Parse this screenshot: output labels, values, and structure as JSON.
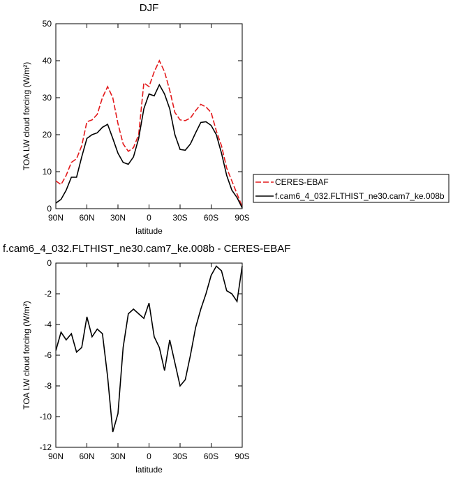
{
  "chart_data": [
    {
      "type": "line",
      "title": "DJF",
      "xlabel": "latitude",
      "ylabel": "TOA LW cloud forcing (W/m²)",
      "x": [
        90,
        85,
        80,
        75,
        70,
        65,
        60,
        55,
        50,
        45,
        40,
        35,
        30,
        25,
        20,
        15,
        10,
        5,
        0,
        -5,
        -10,
        -15,
        -20,
        -25,
        -30,
        -35,
        -40,
        -45,
        -50,
        -55,
        -60,
        -65,
        -70,
        -75,
        -80,
        -85,
        -90
      ],
      "xlim": [
        90,
        -90
      ],
      "xticks": [
        {
          "value": 90,
          "label": "90N"
        },
        {
          "value": 60,
          "label": "60N"
        },
        {
          "value": 30,
          "label": "30N"
        },
        0,
        {
          "value": -30,
          "label": "30S"
        },
        {
          "value": -60,
          "label": "60S"
        },
        {
          "value": -90,
          "label": "90S"
        }
      ],
      "ylim": [
        0,
        50
      ],
      "yticks": [
        0,
        10,
        20,
        30,
        40,
        50
      ],
      "legend": "outside-right",
      "series": [
        {
          "name": "CERES-EBAF",
          "color": "#e31a1c",
          "dash": true,
          "values": [
            7.5,
            6.5,
            9,
            12.5,
            13.5,
            17,
            23.5,
            24,
            25.5,
            30,
            33,
            30,
            23,
            17.5,
            15.5,
            16.5,
            20,
            34,
            33,
            37,
            40,
            37,
            32,
            26,
            24,
            23.8,
            24.5,
            26.5,
            28.2,
            27.5,
            26,
            21,
            17,
            11,
            7.5,
            4,
            0.5
          ]
        },
        {
          "name": "f.cam6_4_032.FLTHIST_ne30.cam7_ke.008b",
          "color": "#000000",
          "dash": false,
          "values": [
            1.5,
            2.5,
            5,
            8.5,
            8.5,
            14,
            19,
            20,
            20.5,
            22,
            22.8,
            19,
            15,
            12.5,
            12,
            14,
            19,
            27,
            31,
            30.5,
            33.5,
            31,
            27,
            20,
            16,
            15.8,
            17.5,
            20.5,
            23.3,
            23.5,
            22.5,
            20,
            15,
            9,
            5,
            3,
            0.2
          ]
        }
      ]
    },
    {
      "type": "line",
      "title": "f.cam6_4_032.FLTHIST_ne30.cam7_ke.008b - CERES-EBAF",
      "xlabel": "latitude",
      "ylabel": "TOA LW cloud forcing (W/m²)",
      "x": [
        90,
        85,
        80,
        75,
        70,
        65,
        60,
        55,
        50,
        45,
        40,
        35,
        30,
        25,
        20,
        15,
        10,
        5,
        0,
        -5,
        -10,
        -15,
        -20,
        -25,
        -30,
        -35,
        -40,
        -45,
        -50,
        -55,
        -60,
        -65,
        -70,
        -75,
        -80,
        -85,
        -90
      ],
      "xlim": [
        90,
        -90
      ],
      "xticks": [
        {
          "value": 90,
          "label": "90N"
        },
        {
          "value": 60,
          "label": "60N"
        },
        {
          "value": 30,
          "label": "30N"
        },
        0,
        {
          "value": -30,
          "label": "30S"
        },
        {
          "value": -60,
          "label": "60S"
        },
        {
          "value": -90,
          "label": "90S"
        }
      ],
      "ylim": [
        -12,
        0
      ],
      "yticks": [
        -12,
        -10,
        -8,
        -6,
        -4,
        -2,
        0
      ],
      "color": "#000000",
      "values": [
        -5.7,
        -4.5,
        -5,
        -4.6,
        -5.8,
        -5.5,
        -3.5,
        -4.8,
        -4.3,
        -4.6,
        -7.4,
        -11,
        -9.8,
        -5.5,
        -3.3,
        -3,
        -3.3,
        -3.6,
        -2.6,
        -4.8,
        -5.5,
        -7,
        -5,
        -6.5,
        -8,
        -7.6,
        -6,
        -4.2,
        -3,
        -2,
        -0.8,
        -0.2,
        -0.5,
        -1.8,
        -2,
        -2.5,
        -0.2
      ]
    }
  ]
}
